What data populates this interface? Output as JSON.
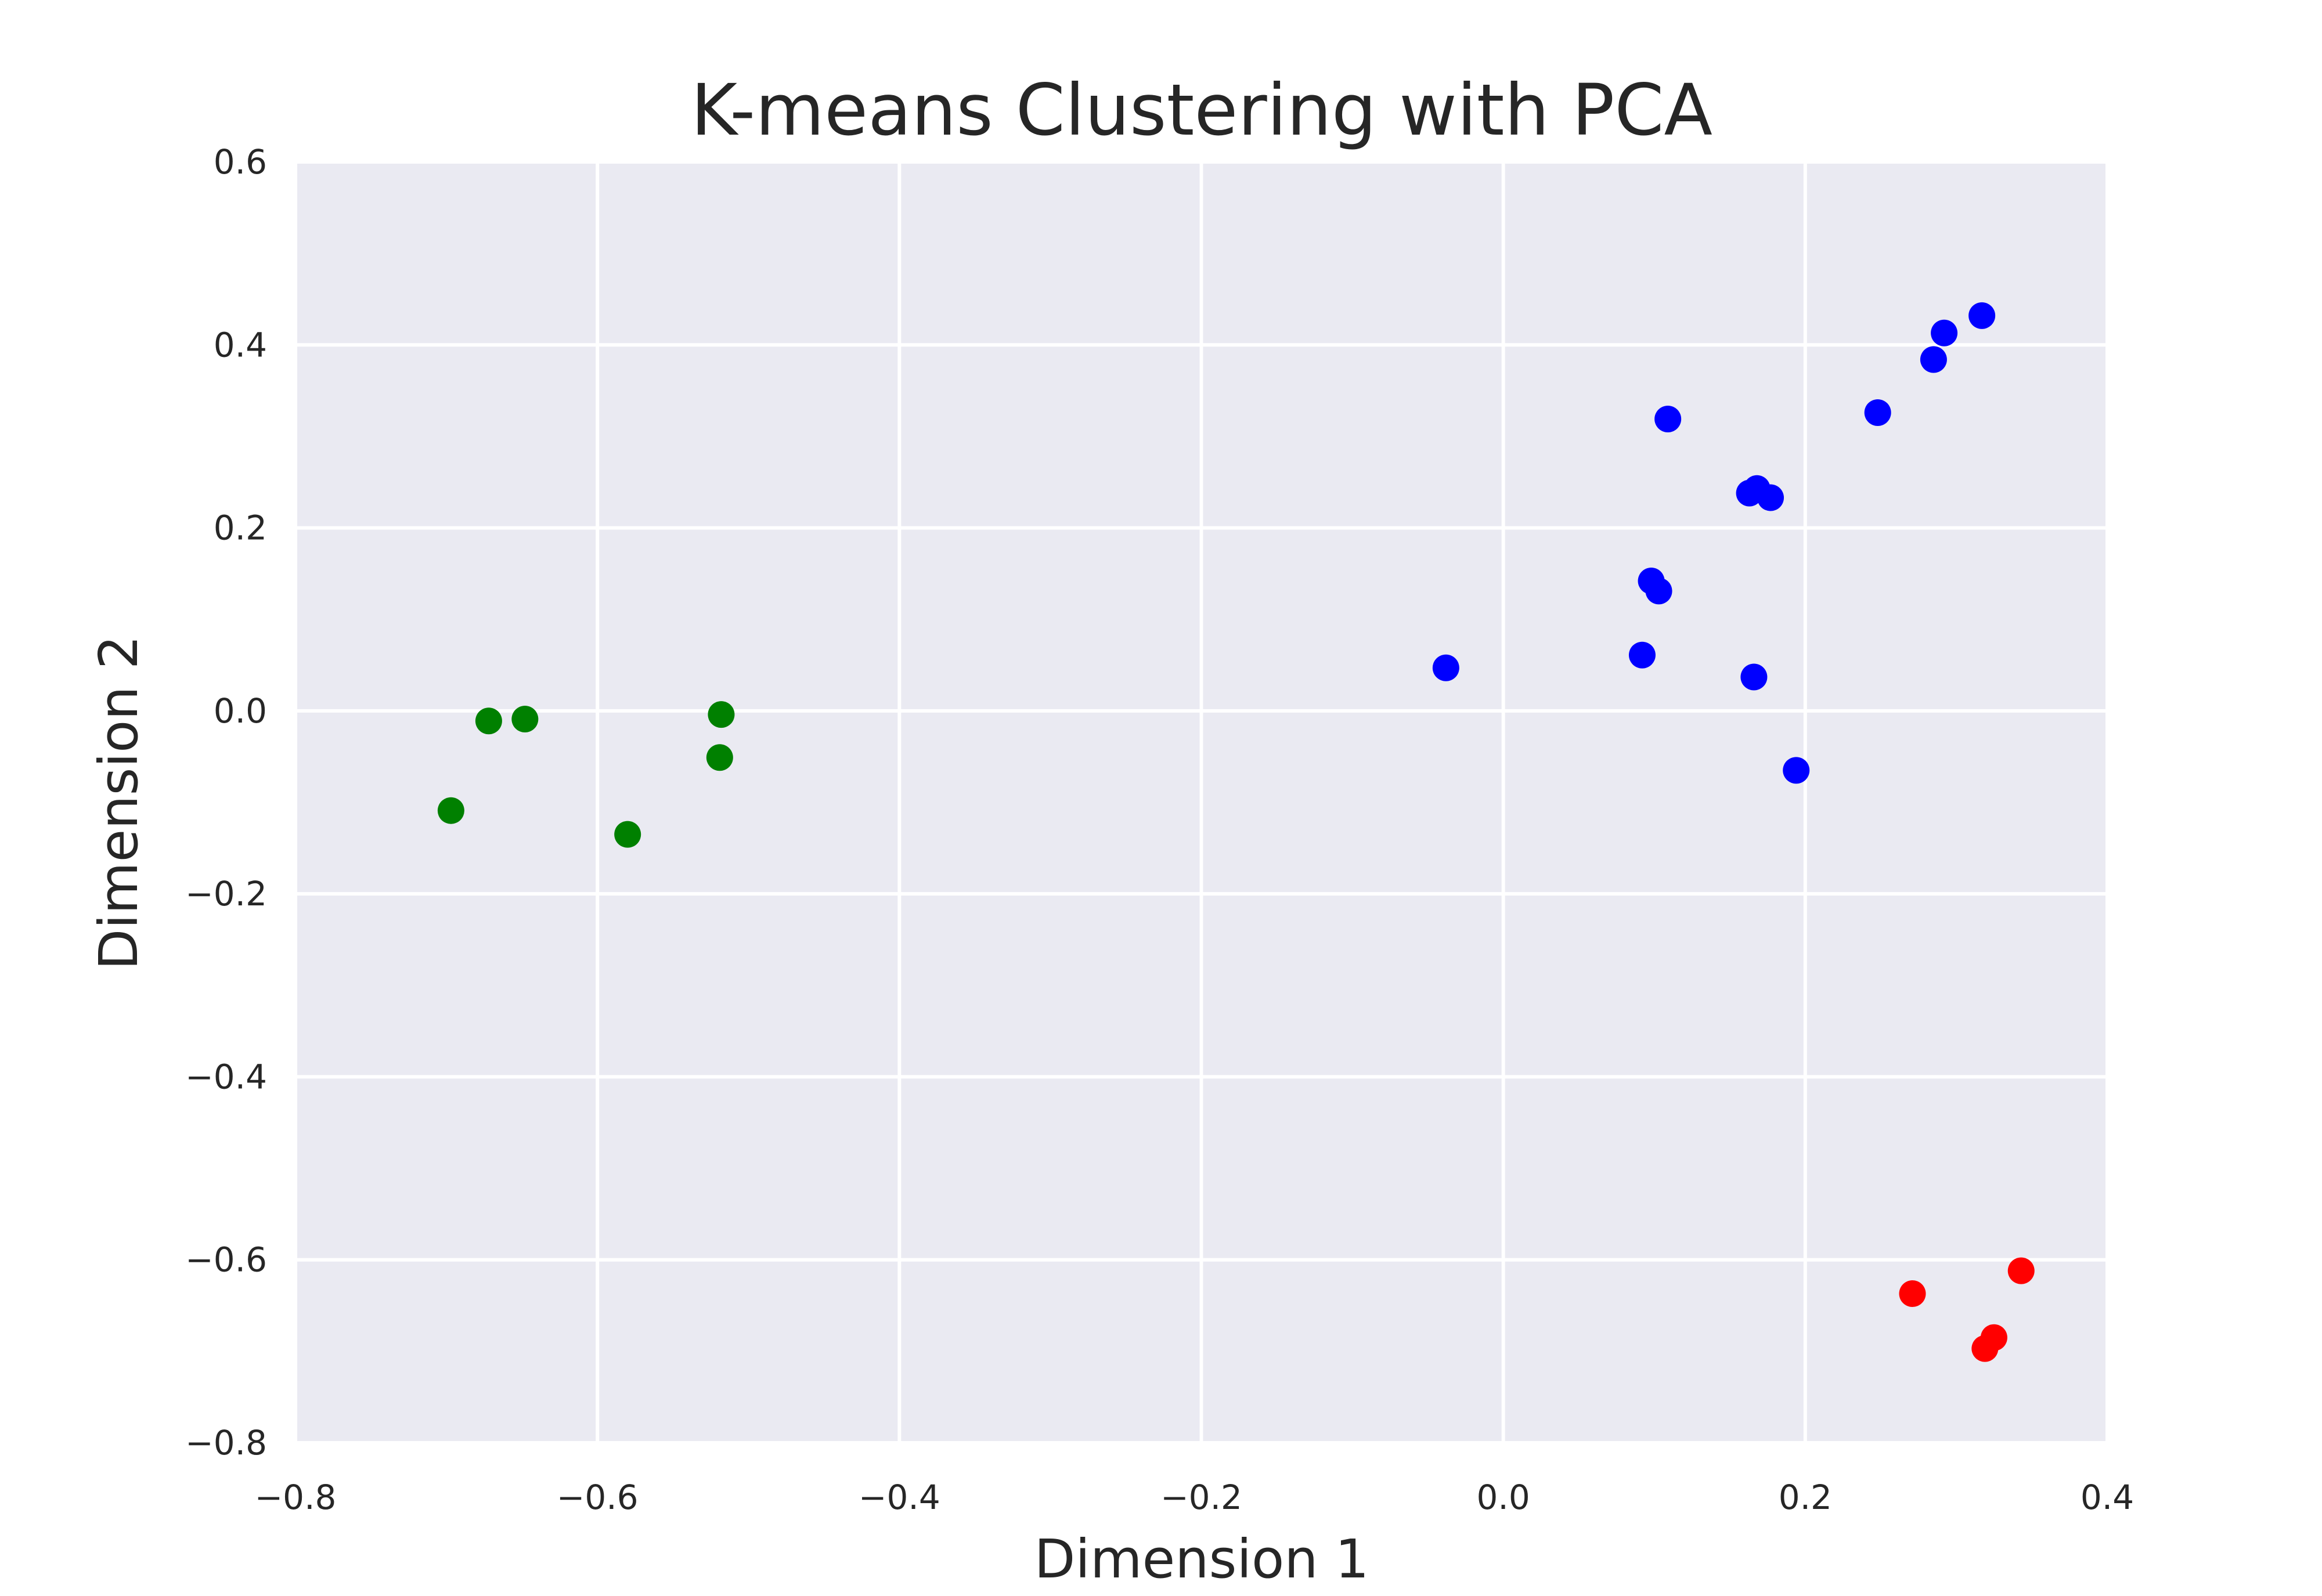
{
  "chart_data": {
    "type": "scatter",
    "title": "K-means Clustering with PCA",
    "xlabel": "Dimension 1",
    "ylabel": "Dimension 2",
    "xlim": [
      -0.8,
      0.4
    ],
    "ylim": [
      -0.8,
      0.6
    ],
    "x_ticks": [
      -0.8,
      -0.6,
      -0.4,
      -0.2,
      0.0,
      0.2,
      0.4
    ],
    "y_ticks": [
      -0.8,
      -0.6,
      -0.4,
      -0.2,
      0.0,
      0.2,
      0.4,
      0.6
    ],
    "x_tick_labels": [
      "−0.8",
      "−0.6",
      "−0.4",
      "−0.2",
      "0.0",
      "0.2",
      "0.4"
    ],
    "y_tick_labels": [
      "−0.8",
      "−0.6",
      "−0.4",
      "−0.2",
      "0.0",
      "0.2",
      "0.4",
      "0.6"
    ],
    "grid": true,
    "background_color": "#eaeaf2",
    "grid_color": "#ffffff",
    "legend": null,
    "series": [
      {
        "color": "#008000",
        "points": [
          {
            "x": -0.697,
            "y": -0.109
          },
          {
            "x": -0.672,
            "y": -0.011
          },
          {
            "x": -0.648,
            "y": -0.009
          },
          {
            "x": -0.58,
            "y": -0.135
          },
          {
            "x": -0.518,
            "y": -0.004
          },
          {
            "x": -0.519,
            "y": -0.051
          }
        ]
      },
      {
        "color": "#0000ff",
        "points": [
          {
            "x": -0.038,
            "y": 0.047
          },
          {
            "x": 0.092,
            "y": 0.061
          },
          {
            "x": 0.098,
            "y": 0.142
          },
          {
            "x": 0.103,
            "y": 0.131
          },
          {
            "x": 0.109,
            "y": 0.319
          },
          {
            "x": 0.163,
            "y": 0.238
          },
          {
            "x": 0.168,
            "y": 0.243
          },
          {
            "x": 0.177,
            "y": 0.233
          },
          {
            "x": 0.166,
            "y": 0.037
          },
          {
            "x": 0.194,
            "y": -0.065
          },
          {
            "x": 0.248,
            "y": 0.326
          },
          {
            "x": 0.285,
            "y": 0.384
          },
          {
            "x": 0.292,
            "y": 0.413
          },
          {
            "x": 0.317,
            "y": 0.432
          }
        ]
      },
      {
        "color": "#ff0000",
        "points": [
          {
            "x": 0.271,
            "y": -0.637
          },
          {
            "x": 0.319,
            "y": -0.697
          },
          {
            "x": 0.325,
            "y": -0.685
          },
          {
            "x": 0.343,
            "y": -0.612
          }
        ]
      }
    ]
  }
}
